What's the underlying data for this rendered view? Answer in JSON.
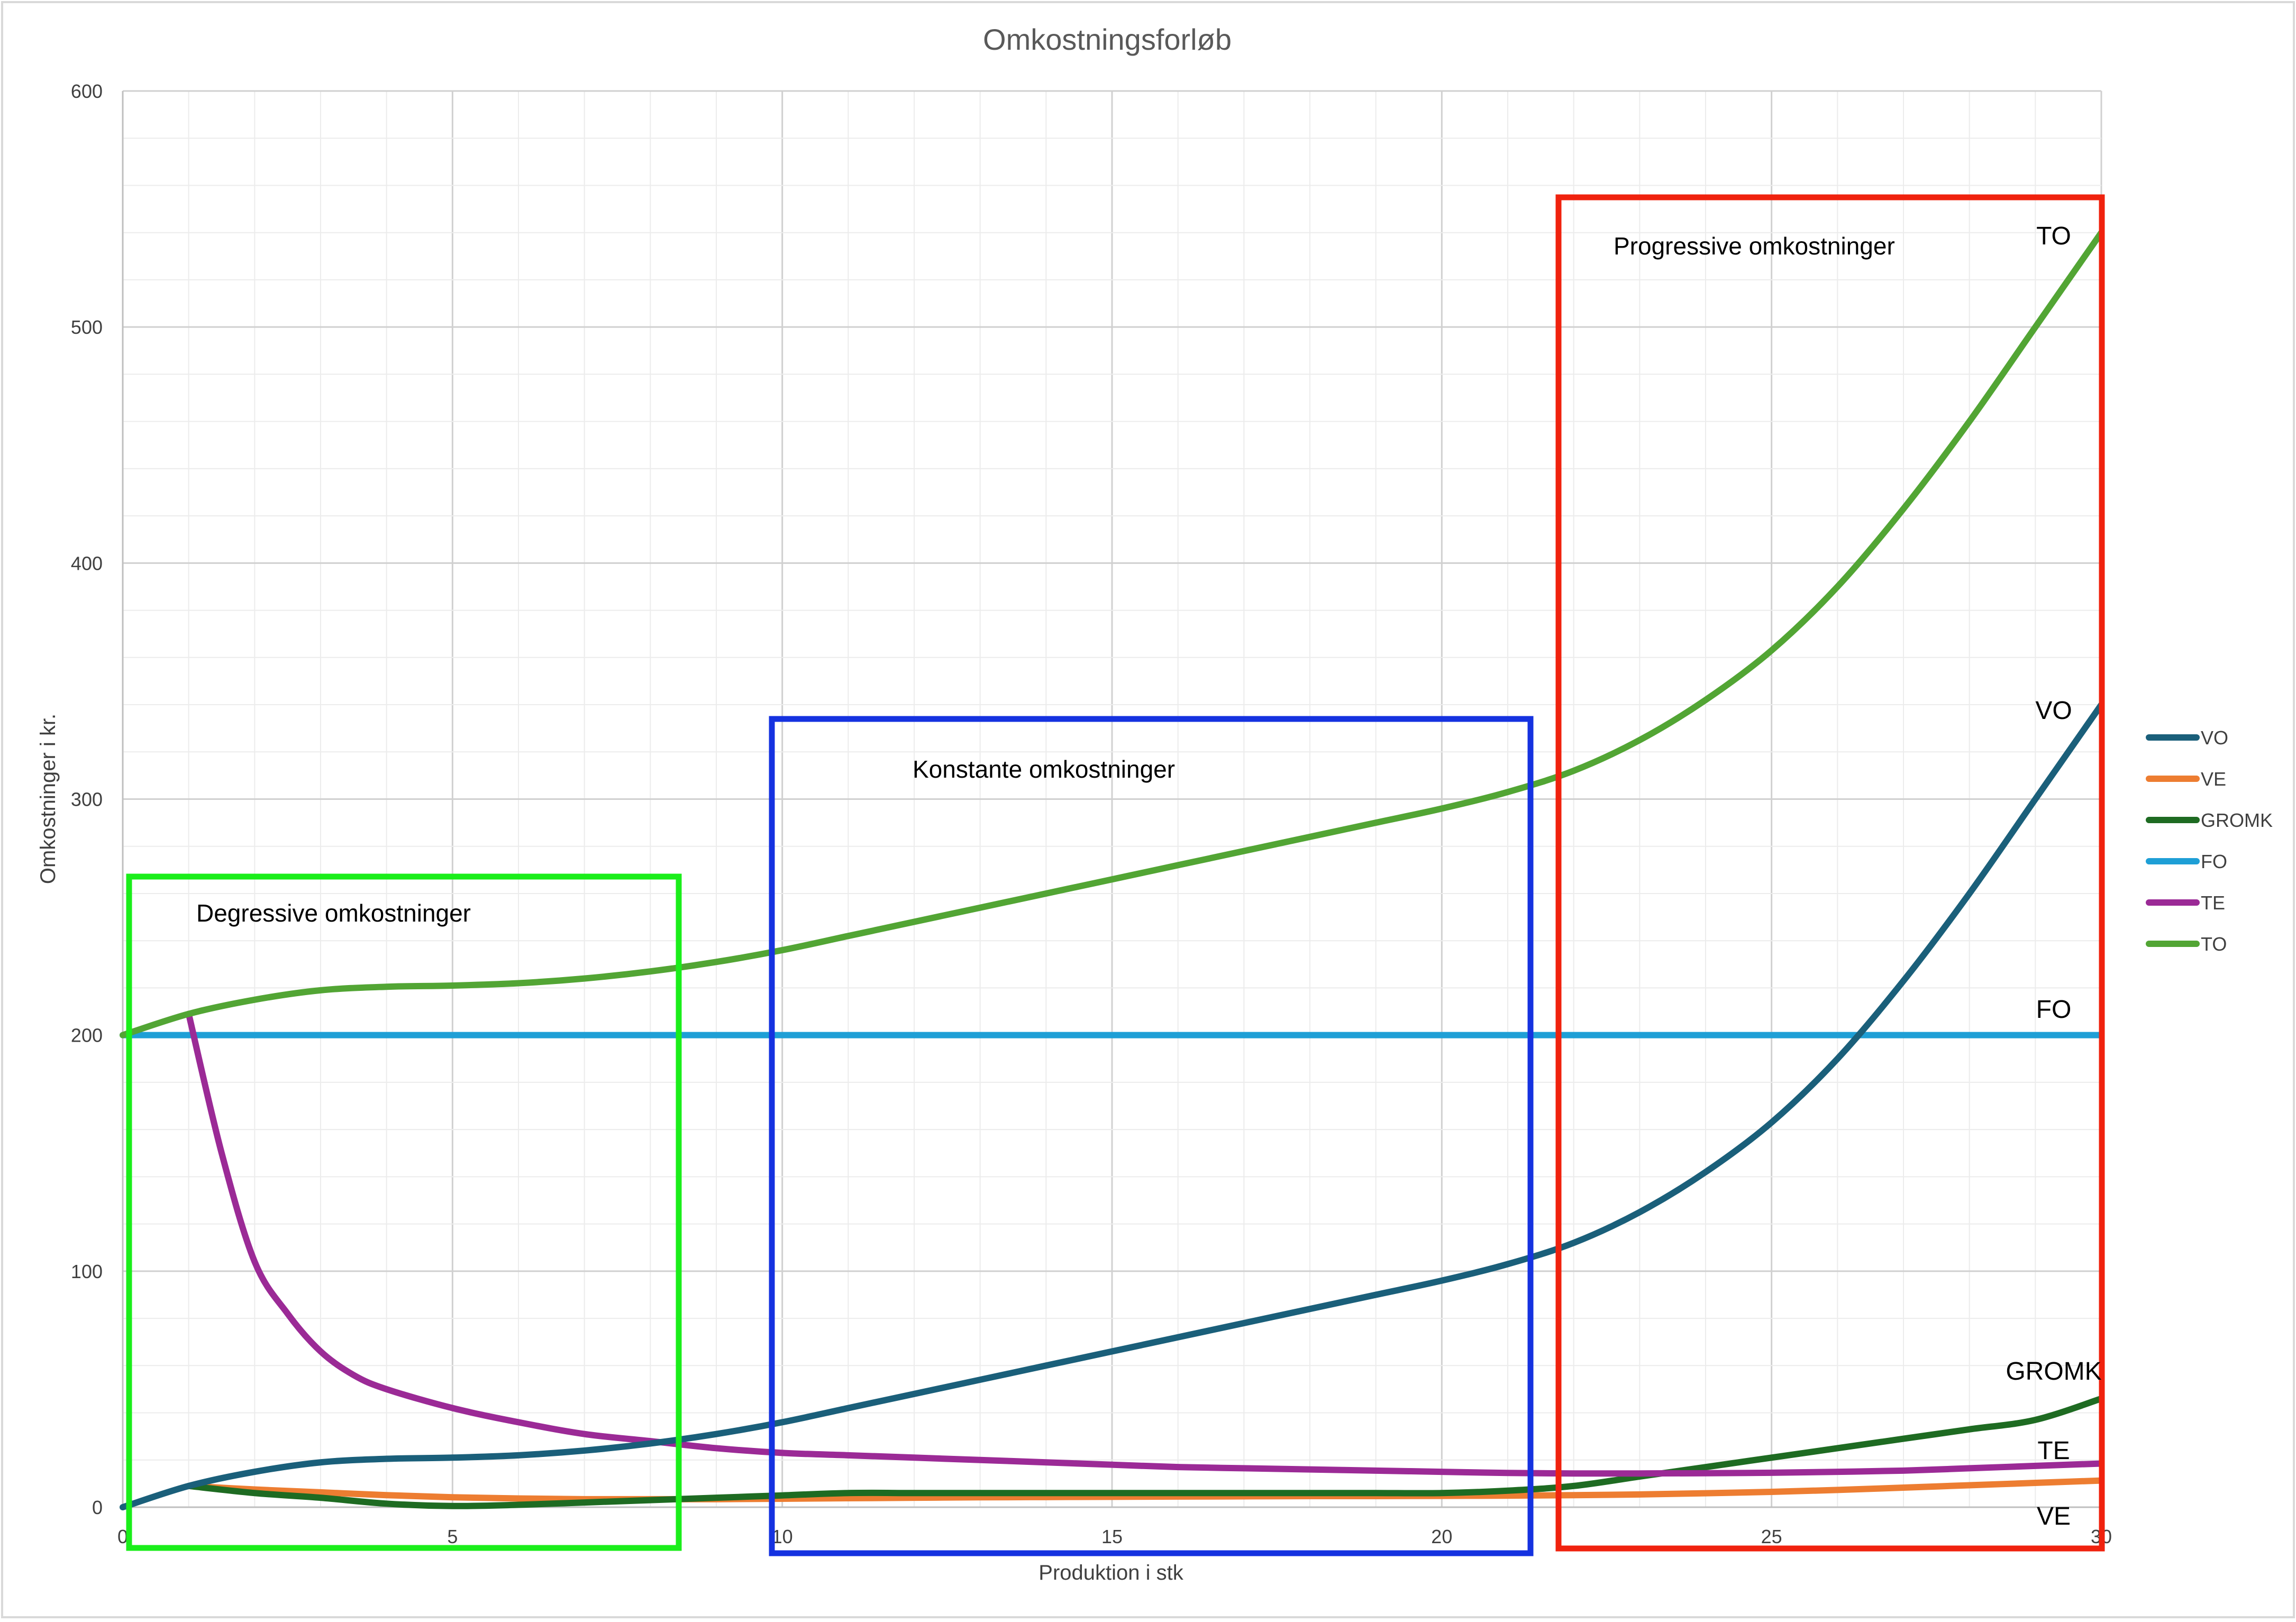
{
  "chart_data": {
    "type": "line",
    "title": "Omkostningsforløb",
    "xlabel": "Produktion i stk",
    "ylabel": "Omkostninger i kr.",
    "xlim": [
      0,
      30
    ],
    "ylim": [
      0,
      600
    ],
    "x_ticks": [
      0,
      5,
      10,
      15,
      20,
      25,
      30
    ],
    "y_ticks": [
      0,
      100,
      200,
      300,
      400,
      500,
      600
    ],
    "grid": true,
    "legend_position": "right",
    "series": [
      {
        "name": "VO",
        "color": "#1a5f7a",
        "x": [
          0,
          1,
          2,
          3,
          4,
          5,
          6,
          7,
          8,
          9,
          10,
          11,
          12,
          13,
          14,
          15,
          16,
          17,
          18,
          19,
          20,
          21,
          22,
          23,
          24,
          25,
          26,
          27,
          28,
          29,
          30
        ],
        "values": [
          0,
          9,
          15,
          19,
          20.5,
          21,
          22,
          24,
          27,
          31,
          36,
          42,
          48,
          54,
          60,
          66,
          72,
          78,
          84,
          90,
          96,
          103,
          112,
          125,
          142,
          163,
          190,
          223,
          260,
          300,
          340
        ]
      },
      {
        "name": "VE",
        "color": "#ed7d31",
        "x": [
          1,
          2,
          3,
          4,
          5,
          6,
          7,
          8,
          9,
          10,
          11,
          12,
          13,
          14,
          15,
          16,
          17,
          18,
          19,
          20,
          21,
          22,
          23,
          24,
          25,
          26,
          27,
          28,
          29,
          30
        ],
        "values": [
          9,
          7.5,
          6.3,
          5.1,
          4.2,
          3.7,
          3.4,
          3.4,
          3.4,
          3.6,
          3.8,
          4.0,
          4.2,
          4.3,
          4.4,
          4.5,
          4.6,
          4.7,
          4.7,
          4.8,
          4.9,
          5.1,
          5.4,
          5.9,
          6.5,
          7.3,
          8.3,
          9.3,
          10.3,
          11.3
        ]
      },
      {
        "name": "GROMK",
        "color": "#1e6b22",
        "x": [
          1,
          2,
          3,
          4,
          5,
          6,
          7,
          8,
          9,
          10,
          11,
          12,
          13,
          14,
          15,
          16,
          17,
          18,
          19,
          20,
          21,
          22,
          23,
          24,
          25,
          26,
          27,
          28,
          29,
          30
        ],
        "values": [
          9,
          6,
          4,
          1.5,
          0.5,
          1,
          2,
          3,
          4,
          5,
          6,
          6,
          6,
          6,
          6,
          6,
          6,
          6,
          6,
          6,
          7,
          9,
          13,
          17,
          21,
          25,
          29,
          33,
          37,
          46
        ]
      },
      {
        "name": "FO",
        "color": "#1e9fd6",
        "x": [
          0,
          30
        ],
        "values": [
          200,
          200
        ]
      },
      {
        "name": "TE",
        "color": "#9b2a96",
        "x": [
          1,
          1.5,
          2,
          2.5,
          3,
          3.5,
          4,
          5,
          6,
          7,
          8,
          9,
          10,
          11,
          12,
          13,
          14,
          15,
          16,
          17,
          18,
          19,
          20,
          21,
          22,
          23,
          24,
          25,
          26,
          27,
          28,
          29,
          30
        ],
        "values": [
          209,
          150,
          104,
          82,
          66,
          56,
          50,
          42,
          36,
          31,
          28,
          25,
          23,
          22,
          21,
          20,
          19,
          18,
          17,
          16.5,
          16,
          15.5,
          15,
          14.5,
          14.3,
          14.3,
          14.4,
          14.6,
          15,
          15.5,
          16.5,
          17.5,
          18.5
        ]
      },
      {
        "name": "TO",
        "color": "#52a534",
        "x": [
          0,
          1,
          2,
          3,
          4,
          5,
          6,
          7,
          8,
          9,
          10,
          11,
          12,
          13,
          14,
          15,
          16,
          17,
          18,
          19,
          20,
          21,
          22,
          23,
          24,
          25,
          26,
          27,
          28,
          29,
          30
        ],
        "values": [
          200,
          209,
          215,
          219,
          220.5,
          221,
          222,
          224,
          227,
          231,
          236,
          242,
          248,
          254,
          260,
          266,
          272,
          278,
          284,
          290,
          296,
          303,
          312,
          325,
          342,
          363,
          390,
          423,
          460,
          500,
          540
        ]
      }
    ],
    "annotations": [
      {
        "id": "degressive",
        "text": "Degressive omkostninger",
        "color": "#1aee1a"
      },
      {
        "id": "konstante",
        "text": "Konstante omkostninger",
        "color": "#1532e0"
      },
      {
        "id": "progressive",
        "text": "Progressive omkostninger",
        "color": "#f0220e"
      }
    ],
    "end_labels": {
      "TO": "TO",
      "VO": "VO",
      "FO": "FO",
      "GROMK": "GROMK",
      "TE": "TE",
      "VE": "VE"
    }
  }
}
